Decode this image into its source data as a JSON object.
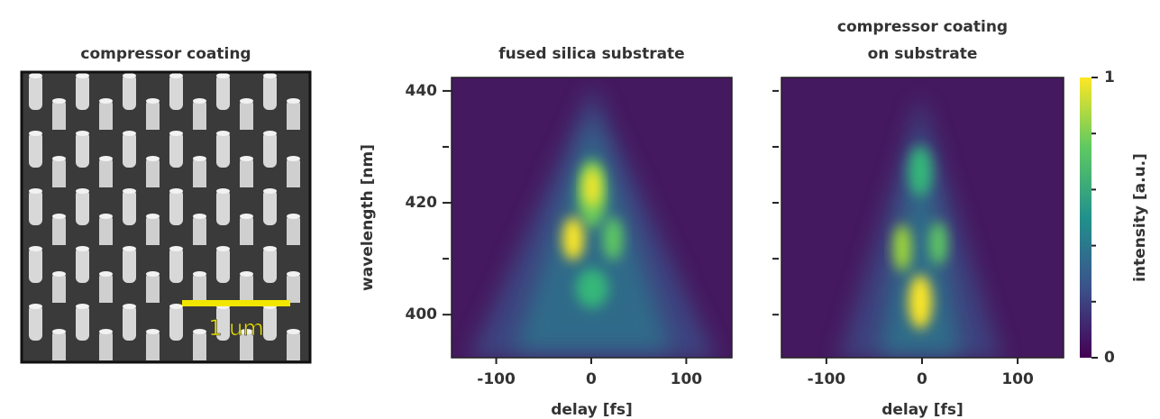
{
  "image_panel": {
    "title": "compressor coating",
    "scale_bar": "1 um"
  },
  "chart_data": [
    {
      "type": "heatmap",
      "title": [
        "fused silica substrate"
      ],
      "xlabel": "delay [fs]",
      "ylabel": "wavelength [nm]",
      "xlim": [
        -147,
        148
      ],
      "xticks": [
        -100,
        0,
        100
      ],
      "ylim": [
        392.3,
        442.4
      ],
      "yticks": [
        400,
        420,
        440
      ],
      "yminorticks": [
        410,
        430
      ]
    },
    {
      "type": "heatmap",
      "title": [
        "compressor coating",
        "on substrate"
      ],
      "xlabel": "delay [fs]",
      "xlim": [
        -147,
        148
      ],
      "xticks": [
        -100,
        0,
        100
      ],
      "ylim": [
        392.3,
        442.4
      ],
      "yminorticks": [
        400,
        410,
        420,
        430,
        440
      ],
      "colorbar": {
        "label": "intensity [a.u.]",
        "lim": [
          0,
          1
        ],
        "ticks": [
          0,
          1
        ],
        "minorticks": [
          0.2,
          0.4,
          0.6,
          0.8
        ]
      }
    }
  ]
}
